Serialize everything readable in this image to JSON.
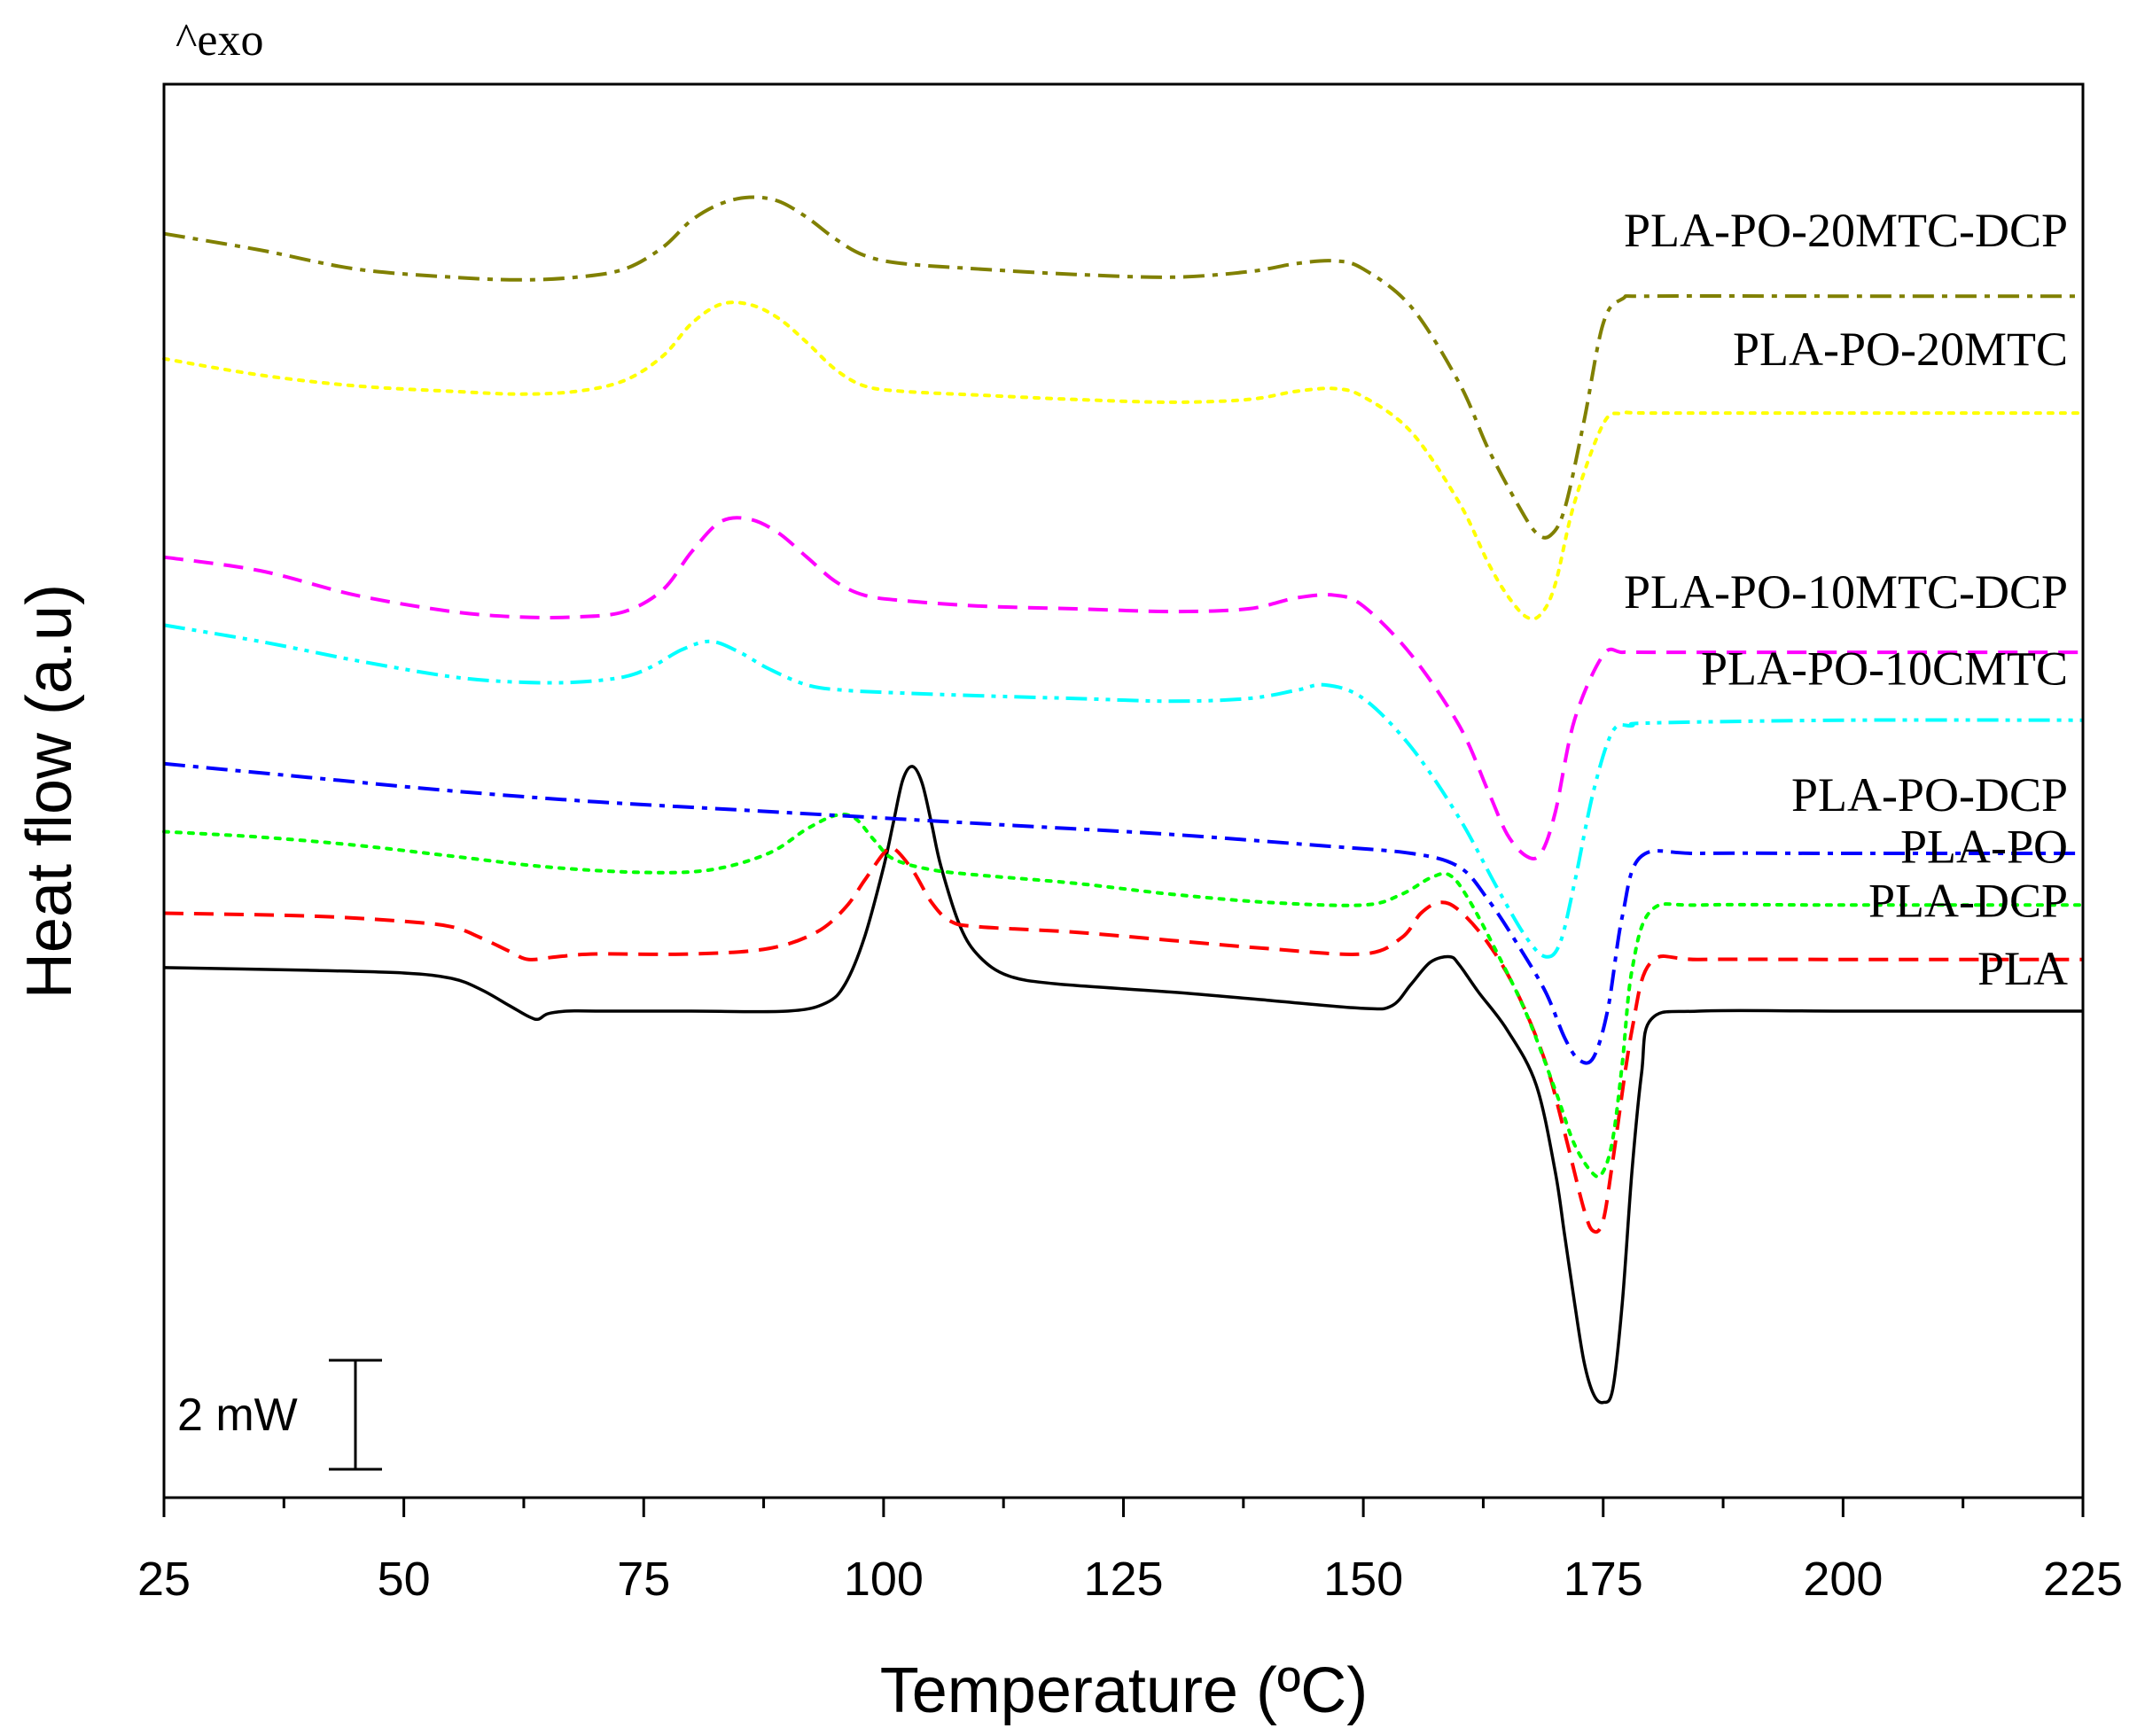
{
  "chart_data": {
    "type": "line",
    "title": "",
    "xlabel": "Temperature (ºC)",
    "ylabel": "Heat flow (a.u)",
    "corner_label": "^exo",
    "scale_bar_label": "2 mW",
    "scale_bar_value_mW": 2,
    "xlim": [
      25,
      225
    ],
    "x_ticks": [
      "25",
      "50",
      "75",
      "100",
      "125",
      "150",
      "175",
      "200",
      "225"
    ],
    "y_unit": "mW (stacked curves, arbitrary vertical offsets)",
    "grid": false,
    "series": [
      {
        "name": "PLA-PO-20MTC-DCP",
        "color": "#808000",
        "dash": "dashdot",
        "x": [
          25,
          35,
          45,
          55,
          62,
          68,
          73,
          77,
          80,
          83,
          86,
          89,
          92,
          95,
          98,
          102,
          110,
          120,
          130,
          138,
          143,
          147,
          150,
          155,
          160,
          163,
          166,
          168,
          169.5,
          171,
          173,
          175,
          177,
          180,
          200,
          225
        ],
        "y": [
          23.25,
          22.95,
          22.6,
          22.45,
          22.4,
          22.45,
          22.6,
          23.0,
          23.5,
          23.8,
          23.92,
          23.85,
          23.55,
          23.15,
          22.85,
          22.7,
          22.6,
          22.5,
          22.45,
          22.55,
          22.7,
          22.75,
          22.6,
          21.9,
          20.5,
          19.3,
          18.3,
          17.75,
          17.7,
          18.2,
          19.8,
          21.6,
          22.05,
          22.1,
          22.1,
          22.1
        ]
      },
      {
        "name": "PLA-PO-20MTC",
        "color": "#ffff00",
        "dash": "dot",
        "x": [
          25,
          35,
          45,
          55,
          62,
          68,
          73,
          77,
          80,
          83,
          86,
          89,
          92,
          95,
          98,
          102,
          110,
          120,
          130,
          138,
          143,
          147,
          150,
          155,
          160,
          163,
          165,
          167,
          168.5,
          170,
          172,
          175,
          177,
          180,
          200,
          225
        ],
        "y": [
          20.95,
          20.65,
          20.45,
          20.35,
          20.3,
          20.35,
          20.55,
          21.0,
          21.6,
          21.95,
          21.95,
          21.7,
          21.25,
          20.75,
          20.45,
          20.35,
          20.28,
          20.2,
          20.15,
          20.2,
          20.35,
          20.4,
          20.25,
          19.6,
          18.3,
          17.2,
          16.6,
          16.2,
          16.25,
          16.8,
          18.3,
          19.75,
          19.95,
          19.95,
          19.95,
          19.95
        ]
      },
      {
        "name": "PLA-PO-10MTC-DCP",
        "color": "#ff00ff",
        "dash": "dash",
        "x": [
          25,
          35,
          45,
          55,
          62,
          68,
          73,
          77,
          80,
          83,
          86,
          89,
          92,
          95,
          98,
          102,
          110,
          120,
          130,
          138,
          143,
          147,
          150,
          155,
          160,
          163,
          165,
          167,
          168.5,
          170,
          172,
          175,
          177,
          180,
          200,
          225
        ],
        "y": [
          17.3,
          17.05,
          16.6,
          16.3,
          16.2,
          16.2,
          16.3,
          16.7,
          17.4,
          17.95,
          18.0,
          17.75,
          17.3,
          16.85,
          16.6,
          16.5,
          16.4,
          16.35,
          16.3,
          16.35,
          16.55,
          16.6,
          16.4,
          15.5,
          14.2,
          13.0,
          12.2,
          11.8,
          11.85,
          12.6,
          14.3,
          15.5,
          15.55,
          15.55,
          15.55,
          15.55
        ]
      },
      {
        "name": "PLA-PO-10CMTC",
        "color": "#00ffff",
        "dash": "dashdotdot",
        "x": [
          25,
          35,
          45,
          55,
          62,
          68,
          73,
          76,
          79,
          82,
          85,
          88,
          92,
          96,
          102,
          110,
          120,
          130,
          138,
          143,
          146,
          150,
          155,
          160,
          164,
          167,
          169,
          170.5,
          172,
          174,
          176,
          178,
          180,
          200,
          225
        ],
        "y": [
          16.05,
          15.75,
          15.4,
          15.1,
          15.0,
          15.0,
          15.1,
          15.3,
          15.6,
          15.75,
          15.55,
          15.25,
          14.95,
          14.85,
          14.8,
          14.75,
          14.7,
          14.65,
          14.7,
          14.85,
          14.95,
          14.7,
          13.8,
          12.5,
          11.2,
          10.3,
          9.95,
          10.2,
          11.3,
          13.0,
          14.1,
          14.2,
          14.25,
          14.3,
          14.3
        ]
      },
      {
        "name": "PLA-PO-DCP",
        "color": "#0000ff",
        "dash": "dashdot",
        "x": [
          25,
          40,
          55,
          70,
          85,
          100,
          115,
          130,
          145,
          155,
          160,
          163,
          166,
          169,
          171,
          172.5,
          174,
          175.5,
          177,
          179,
          185,
          200,
          225
        ],
        "y": [
          13.5,
          13.25,
          13.0,
          12.8,
          12.65,
          12.5,
          12.35,
          12.2,
          12.0,
          11.85,
          11.6,
          11.0,
          10.2,
          9.3,
          8.45,
          8.05,
          8.1,
          9.0,
          10.7,
          11.8,
          11.85,
          11.85,
          11.85
        ]
      },
      {
        "name": "PLA-PO",
        "color": "#00ff00",
        "dash": "dot",
        "x": [
          25,
          35,
          45,
          55,
          65,
          75,
          82,
          88,
          92,
          95,
          97,
          99,
          101,
          105,
          110,
          120,
          130,
          140,
          150,
          154,
          157,
          159,
          161,
          164,
          167,
          170,
          172,
          174,
          175,
          176,
          177,
          178,
          180,
          185,
          200,
          225
        ],
        "y": [
          12.25,
          12.15,
          12.0,
          11.8,
          11.6,
          11.5,
          11.55,
          11.85,
          12.3,
          12.55,
          12.5,
          12.1,
          11.75,
          11.55,
          11.45,
          11.3,
          11.1,
          10.95,
          10.9,
          11.1,
          11.4,
          11.45,
          11.0,
          10.0,
          8.9,
          7.5,
          6.5,
          5.95,
          6.0,
          6.6,
          8.0,
          9.7,
          10.8,
          10.9,
          10.9,
          10.9
        ]
      },
      {
        "name": "PLA-DCP",
        "color": "#ff0000",
        "dash": "dash",
        "x": [
          25,
          40,
          50,
          55,
          58,
          61,
          63,
          66,
          70,
          80,
          88,
          93,
          96,
          98,
          100,
          101,
          103,
          105,
          107,
          110,
          120,
          130,
          140,
          150,
          154,
          156,
          158,
          160,
          163,
          166,
          169,
          171,
          173,
          174,
          175,
          176,
          178,
          180,
          185,
          200,
          225
        ],
        "y": [
          10.75,
          10.7,
          10.6,
          10.5,
          10.3,
          10.05,
          9.9,
          9.95,
          10.0,
          10.0,
          10.1,
          10.4,
          10.85,
          11.35,
          11.85,
          11.95,
          11.55,
          10.95,
          10.6,
          10.5,
          10.4,
          10.25,
          10.1,
          10.0,
          10.3,
          10.75,
          10.95,
          10.8,
          10.2,
          9.3,
          8.0,
          6.7,
          5.3,
          4.9,
          5.1,
          6.2,
          8.6,
          9.85,
          9.9,
          9.9,
          9.9
        ]
      },
      {
        "name": "PLA",
        "color": "#000000",
        "dash": "solid",
        "x": [
          25,
          40,
          50,
          55,
          58,
          61,
          63,
          64,
          65,
          67,
          70,
          80,
          90,
          94,
          96,
          98,
          100,
          101,
          102,
          103,
          104,
          105,
          106,
          108,
          110,
          113,
          118,
          130,
          140,
          150,
          153,
          155,
          157,
          159,
          160,
          162,
          165,
          168,
          170,
          171,
          172,
          173,
          174,
          175,
          176,
          177,
          178,
          179,
          180,
          185,
          200,
          225
        ],
        "y": [
          9.75,
          9.7,
          9.65,
          9.55,
          9.35,
          9.05,
          8.85,
          8.8,
          8.9,
          8.95,
          8.95,
          8.95,
          8.95,
          9.1,
          9.45,
          10.3,
          11.6,
          12.4,
          13.2,
          13.45,
          13.15,
          12.4,
          11.6,
          10.5,
          9.95,
          9.6,
          9.45,
          9.3,
          9.15,
          9.0,
          9.05,
          9.45,
          9.85,
          9.95,
          9.8,
          9.3,
          8.6,
          7.6,
          6.0,
          4.8,
          3.6,
          2.5,
          1.9,
          1.75,
          2.0,
          3.6,
          6.0,
          7.8,
          8.8,
          8.95,
          8.95,
          8.95
        ]
      }
    ]
  }
}
